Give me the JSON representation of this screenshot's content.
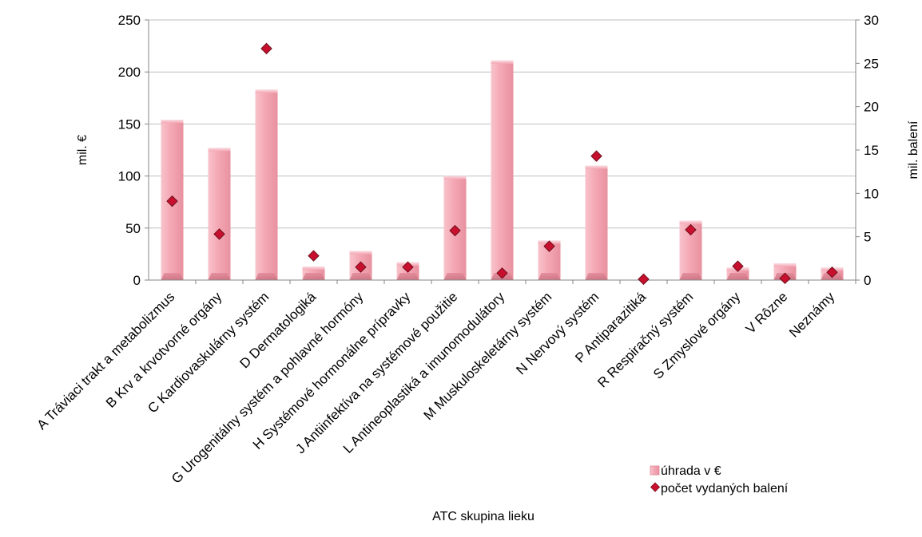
{
  "chart_data": {
    "type": "bar",
    "title": "",
    "xlabel": "ATC skupina lieku",
    "ylabel": "mil. €",
    "y2label": "mil. balení",
    "ylim": [
      0,
      250
    ],
    "y2lim": [
      0,
      30
    ],
    "yticks": [
      0,
      50,
      100,
      150,
      200,
      250
    ],
    "y2ticks": [
      0,
      5,
      10,
      15,
      20,
      25,
      30
    ],
    "grid": true,
    "legend_position": "bottom-right",
    "categories": [
      "A Tráviaci trakt a metabolizmus",
      "B Krv a krvotvorné orgány",
      "C Kardiovaskulárny systém",
      "D Dermatologiká",
      "G Urogenitálny systém a pohlavné hormóny",
      "H Systémové hormonálne prípravky",
      "J Antiinfektíva na systémové použitie",
      "L Antineoplastiká a imunomodulátory",
      "M Muskuloskeletárny systém",
      "N Nervový systém",
      "P Antiparazitiká",
      "R Respiračný systém",
      "S Zmyslové orgány",
      "V Rôzne",
      "Neznámy"
    ],
    "series": [
      {
        "name": "úhrada v €",
        "kind": "bar",
        "axis": "left",
        "color": "#F4A7B4",
        "values": [
          154,
          127,
          183,
          13,
          28,
          17,
          100,
          211,
          38,
          110,
          0.3,
          57,
          12,
          16,
          12
        ]
      },
      {
        "name": "počet vydaných balení",
        "kind": "marker",
        "axis": "right",
        "color": "#C8102E",
        "values": [
          9.1,
          5.3,
          26.7,
          2.8,
          1.5,
          1.5,
          5.7,
          0.8,
          3.9,
          14.3,
          0.1,
          5.8,
          1.6,
          0.2,
          0.9
        ]
      }
    ]
  }
}
